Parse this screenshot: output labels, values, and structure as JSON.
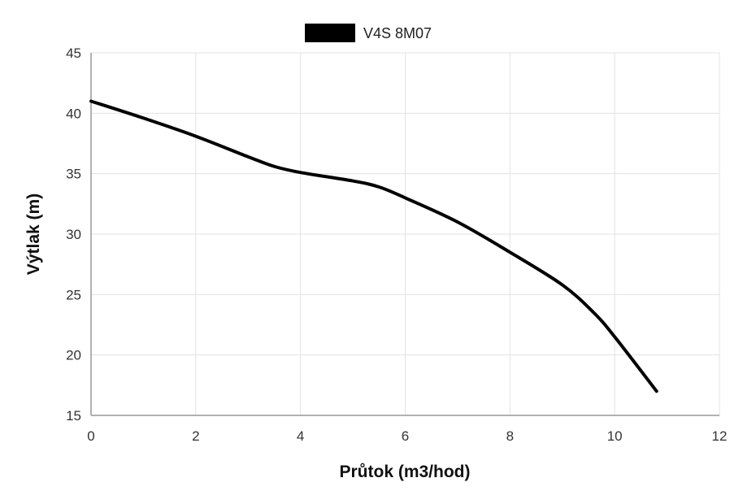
{
  "chart_data": {
    "type": "line",
    "xlabel": "Průtok (m3/hod)",
    "ylabel": "Výtlak (m)",
    "xlim": [
      0,
      12
    ],
    "ylim": [
      15,
      45
    ],
    "x_ticks": [
      0,
      2,
      4,
      6,
      8,
      10,
      12
    ],
    "y_ticks": [
      15,
      20,
      25,
      30,
      35,
      40,
      45
    ],
    "grid": true,
    "legend_position": "top-center",
    "series": [
      {
        "name": "V4S 8M07",
        "color": "#000000",
        "x": [
          0,
          1,
          2,
          3,
          3.5,
          4,
          5,
          5.5,
          6,
          7,
          8,
          9,
          9.6,
          10,
          10.8
        ],
        "y": [
          41,
          39.6,
          38.1,
          36.4,
          35.6,
          35.1,
          34.4,
          33.9,
          33.0,
          31.0,
          28.5,
          25.8,
          23.5,
          21.5,
          17
        ]
      }
    ]
  }
}
